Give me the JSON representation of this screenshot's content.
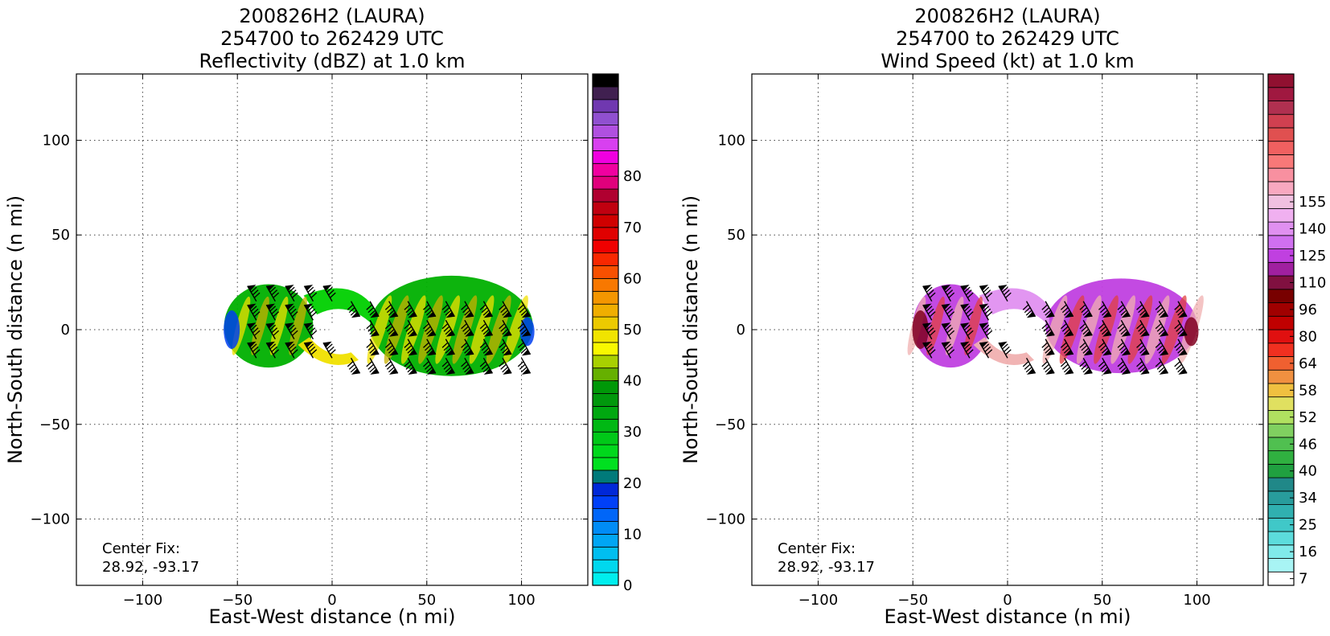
{
  "chart_data": [
    {
      "type": "heatmap",
      "title_lines": [
        "200826H2 (LAURA)",
        "254700 to 262429 UTC",
        "Reflectivity (dBZ) at 1.0 km"
      ],
      "xlabel": "East-West distance (n mi)",
      "ylabel": "North-South distance (n mi)",
      "xlim": [
        -135,
        135
      ],
      "ylim": [
        -135,
        135
      ],
      "xticks": [
        -100,
        -50,
        0,
        50,
        100
      ],
      "yticks": [
        -100,
        -50,
        0,
        50,
        100
      ],
      "xtick_labels": [
        "−100",
        "−50",
        "0",
        "50",
        "100"
      ],
      "ytick_labels": [
        "−100",
        "−50",
        "0",
        "50",
        "100"
      ],
      "grid": true,
      "annotation": [
        "Center Fix:",
        "28.92, -93.17"
      ],
      "colorbar": {
        "levels": 32,
        "tick_labels": [
          "0",
          "10",
          "20",
          "30",
          "40",
          "50",
          "60",
          "70",
          "80"
        ],
        "tick_levels": [
          0,
          4,
          8,
          12,
          16,
          20,
          24,
          28,
          32
        ],
        "colors": [
          "#00eeee",
          "#00d8ee",
          "#00bef0",
          "#00a6f4",
          "#008cf6",
          "#0066f8",
          "#0040f8",
          "#0028d8",
          "#007a7a",
          "#00e020",
          "#00d81c",
          "#00c818",
          "#00b814",
          "#00a810",
          "#00980c",
          "#009808",
          "#66b000",
          "#a8d000",
          "#f8f800",
          "#f0e400",
          "#ecca00",
          "#f0ae00",
          "#f49600",
          "#f87800",
          "#f85000",
          "#f82800",
          "#f00000",
          "#e00000",
          "#d00000",
          "#c00010",
          "#b00030",
          "#e0007c"
        ],
        "top_colors": [
          "#f000a0",
          "#f000e0",
          "#d840f0",
          "#b050e0",
          "#9050d0",
          "#7038b0",
          "#402050",
          "#000000"
        ],
        "extended_levels": 40
      },
      "storm": {
        "approx_extent_x": [
          -57,
          106
        ],
        "approx_extent_y": [
          -25,
          28
        ],
        "core_colors": [
          "#00b000",
          "#00d000",
          "#f0e000",
          "#c8b000",
          "#0040f0"
        ]
      }
    },
    {
      "type": "heatmap",
      "title_lines": [
        "200826H2 (LAURA)",
        "254700 to 262429 UTC",
        "Wind Speed (kt) at 1.0 km"
      ],
      "xlabel": "East-West distance (n mi)",
      "ylabel": "North-South distance (n mi)",
      "xlim": [
        -135,
        135
      ],
      "ylim": [
        -135,
        135
      ],
      "xticks": [
        -100,
        -50,
        0,
        50,
        100
      ],
      "yticks": [
        -100,
        -50,
        0,
        50,
        100
      ],
      "xtick_labels": [
        "−100",
        "−50",
        "0",
        "50",
        "100"
      ],
      "ytick_labels": [
        "−100",
        "−50",
        "0",
        "50",
        "100"
      ],
      "grid": true,
      "annotation": [
        "Center Fix:",
        "28.92, -93.17"
      ],
      "colorbar": {
        "levels": 29,
        "tick_labels": [
          "7",
          "16",
          "25",
          "34",
          "40",
          "46",
          "52",
          "58",
          "64",
          "80",
          "96",
          "110",
          "125",
          "140",
          "155"
        ],
        "tick_levels": [
          0.5,
          2.5,
          4.5,
          6.5,
          8.5,
          10.5,
          12.5,
          14.5,
          16.5,
          18.5,
          20.5,
          22.5,
          24.5,
          26.5,
          28.5
        ],
        "colors": [
          "#ffffff",
          "#a8f4f4",
          "#80eaea",
          "#5cdcdc",
          "#40c8c8",
          "#30b0b0",
          "#289c9c",
          "#208888",
          "#20a040",
          "#30b040",
          "#50c050",
          "#80d060",
          "#b0e060",
          "#e0e060",
          "#f0c040",
          "#f09040",
          "#f06030",
          "#f03020",
          "#e01010",
          "#c00000",
          "#a00000",
          "#780000",
          "#801040",
          "#a020a0",
          "#c040e0",
          "#d070f0",
          "#e090f0",
          "#f0b0f0",
          "#f0c0e0",
          "#f8a8c0",
          "#f890a0",
          "#f87878",
          "#f06060",
          "#e05050",
          "#d04050",
          "#b03050",
          "#a01840",
          "#901030"
        ],
        "extended_levels": 38
      },
      "storm": {
        "approx_extent_x": [
          -50,
          100
        ],
        "approx_extent_y": [
          -25,
          25
        ],
        "core_colors": [
          "#c040e0",
          "#e090f0",
          "#f0b0b0",
          "#e04040",
          "#800020"
        ]
      }
    }
  ]
}
